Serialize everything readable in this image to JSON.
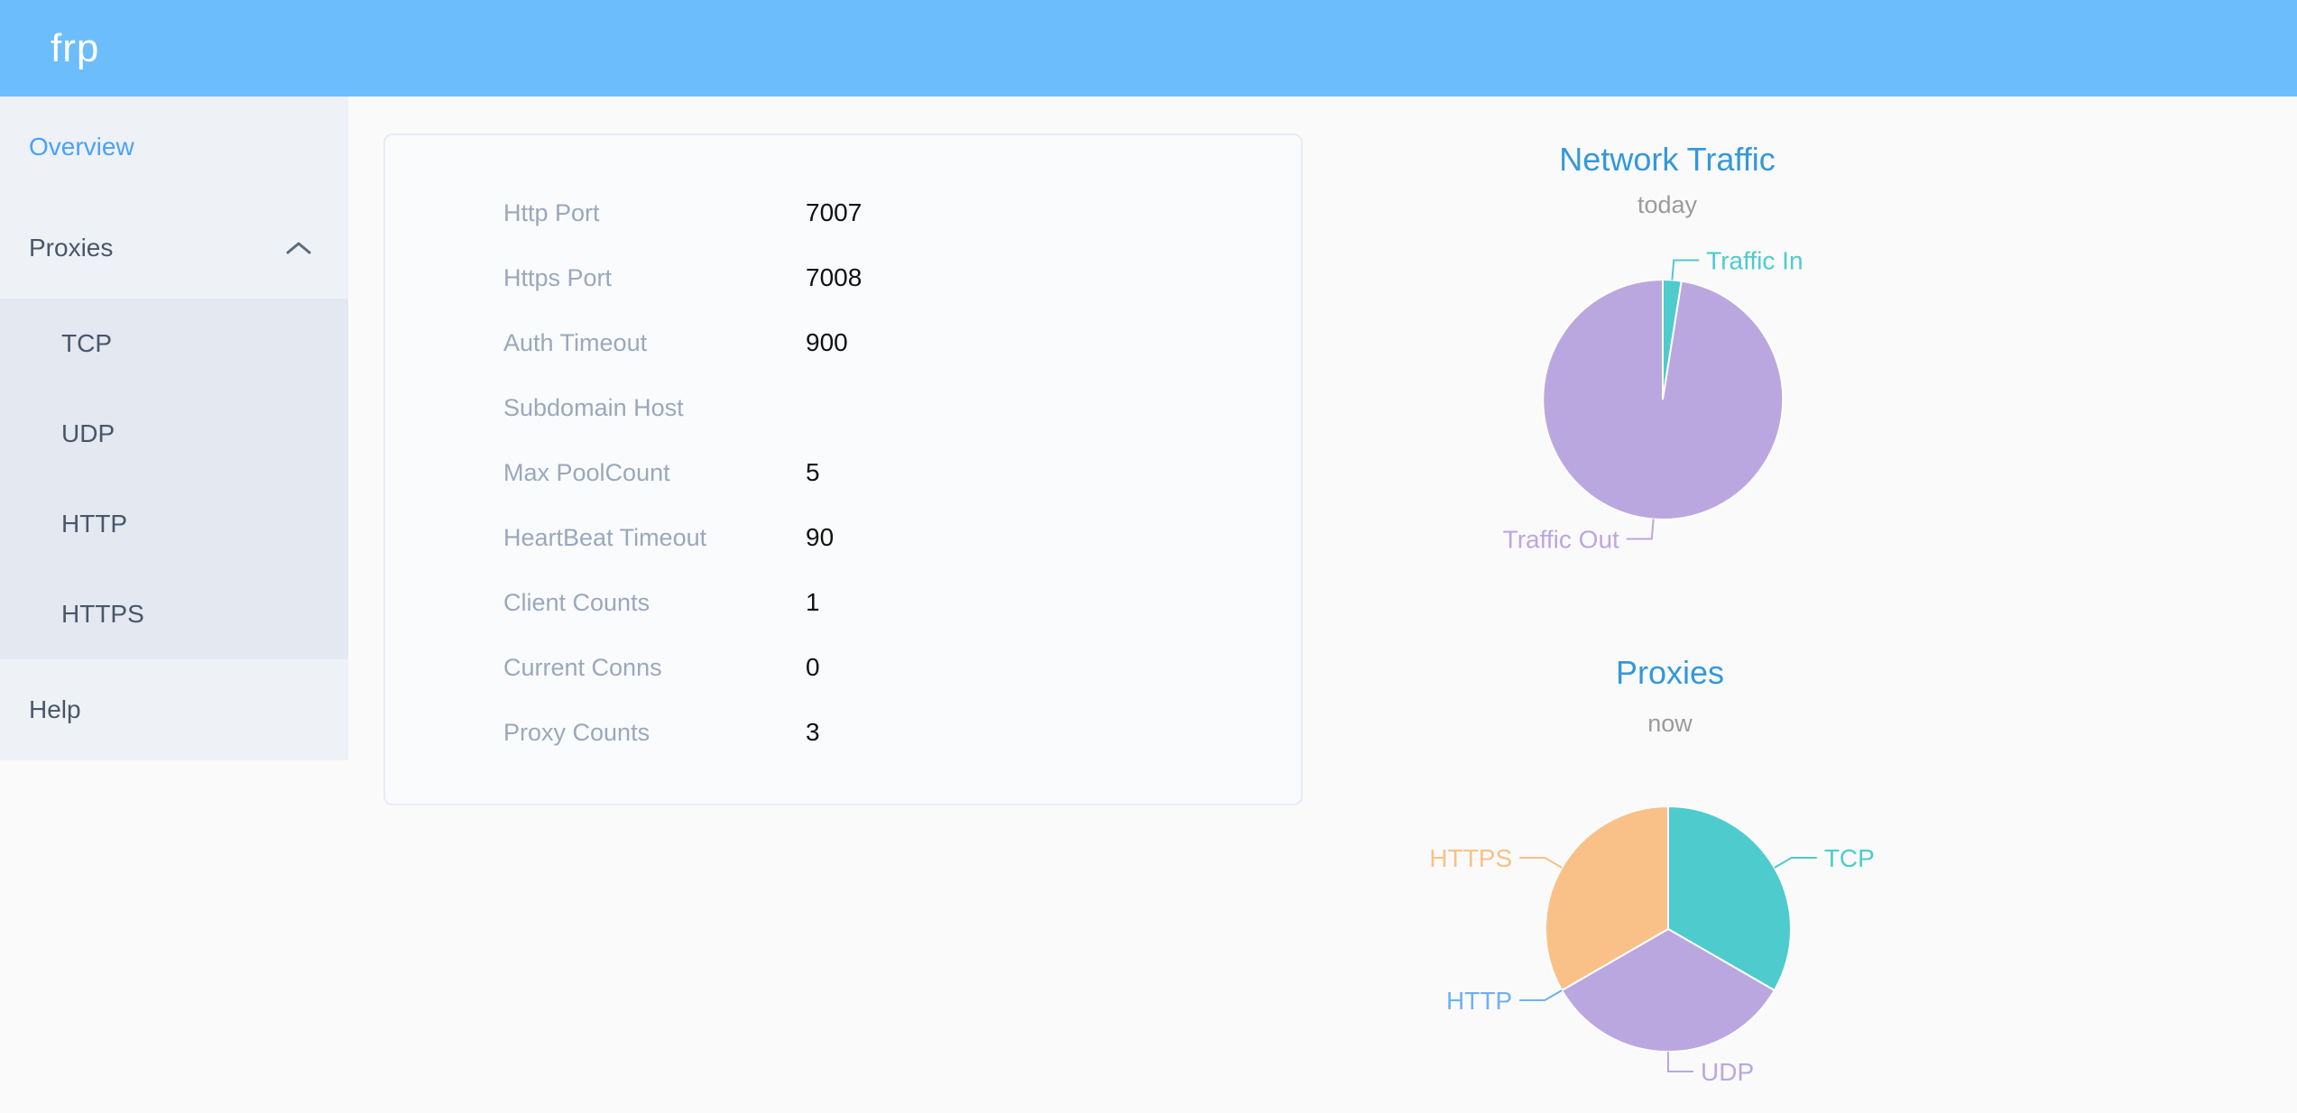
{
  "header": {
    "logo_text": "frp"
  },
  "sidebar": {
    "active_item": "Overview",
    "items": [
      {
        "label": "Overview",
        "active": true
      },
      {
        "label": "Proxies",
        "active": false,
        "expanded": true,
        "children": [
          {
            "label": "TCP"
          },
          {
            "label": "UDP"
          },
          {
            "label": "HTTP"
          },
          {
            "label": "HTTPS"
          }
        ]
      },
      {
        "label": "Help",
        "active": false
      }
    ]
  },
  "server_info": {
    "rows": [
      {
        "label": "Http Port",
        "value": "7007"
      },
      {
        "label": "Https Port",
        "value": "7008"
      },
      {
        "label": "Auth Timeout",
        "value": "900"
      },
      {
        "label": "Subdomain Host",
        "value": ""
      },
      {
        "label": "Max PoolCount",
        "value": "5"
      },
      {
        "label": "HeartBeat Timeout",
        "value": "90"
      },
      {
        "label": "Client Counts",
        "value": "1"
      },
      {
        "label": "Current Conns",
        "value": "0"
      },
      {
        "label": "Proxy Counts",
        "value": "3"
      }
    ]
  },
  "chart_data": [
    {
      "type": "pie",
      "title": "Network Traffic",
      "subtitle": "today",
      "legend": "none",
      "labels": "outside callout lines, label text colored to match slice",
      "units": "share of today's traffic (estimated % — no numeric labels shown)",
      "slices": [
        {
          "name": "Traffic In",
          "value": 2.5,
          "color": "#4ECBCD"
        },
        {
          "name": "Traffic Out",
          "value": 97.5,
          "color": "#BBA7E0"
        }
      ]
    },
    {
      "type": "pie",
      "title": "Proxies",
      "subtitle": "now",
      "legend": "none",
      "labels": "outside callout lines, label text colored to match slice",
      "units": "proxy count (total shown as Proxy Counts = 3)",
      "slices": [
        {
          "name": "TCP",
          "value": 1,
          "color": "#4ECBCD"
        },
        {
          "name": "UDP",
          "value": 1,
          "color": "#BBA7E0"
        },
        {
          "name": "HTTP",
          "value": 0,
          "color": "#6FB1F0"
        },
        {
          "name": "HTTPS",
          "value": 1,
          "color": "#F9C188"
        }
      ]
    }
  ],
  "colors": {
    "header_background": "#6CBDFB",
    "sidebar_background": "#EEF1F6",
    "submenu_background": "#E4E8F1",
    "menu_text": "#48576A",
    "active_menu_text": "#48A2FC",
    "page_background": "#FAFAFA",
    "card_border": "#E8EBF8",
    "card_label_gray": "#9AA8BC",
    "card_value_text": "#111111",
    "chart_title_blue": "#3398DB",
    "chart_subtitle_gray": "#9B9B9B",
    "pie_teal": "#4ECBCD",
    "pie_purple": "#BBA7E0",
    "pie_orange": "#F9C188",
    "pie_light_blue": "#6FB1F0"
  }
}
